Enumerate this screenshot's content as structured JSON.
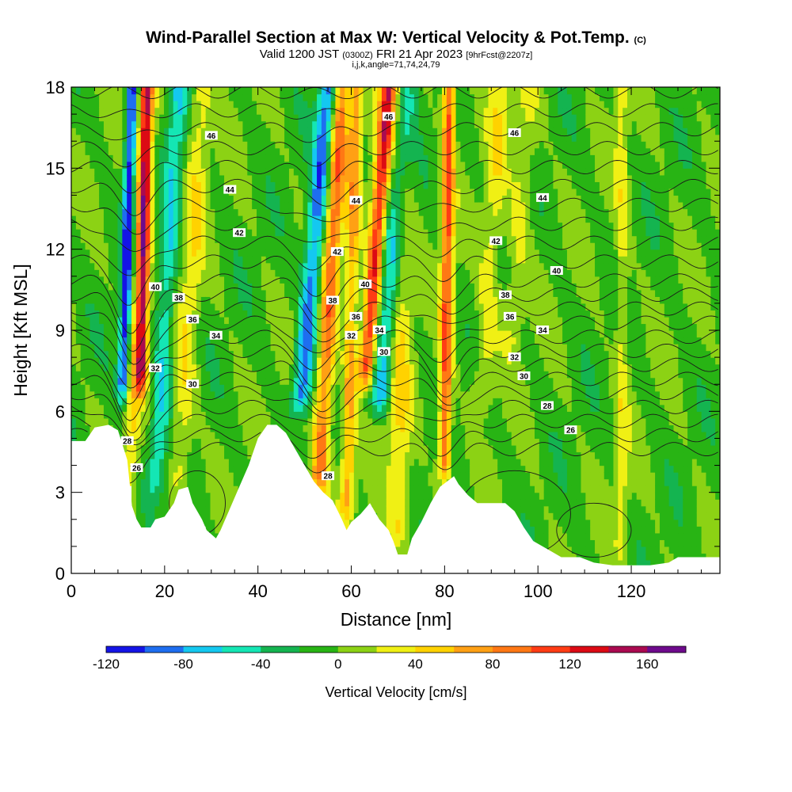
{
  "header": {
    "title": "Wind-Parallel Section at Max W: Vertical Velocity & Pot.Temp.",
    "title_mark": "(C)",
    "sub_valid": "Valid 1200 JST",
    "sub_utc": "(0300Z)",
    "sub_date": "FRI 21 Apr 2023",
    "sub_fcst": "[9hrFcst@2207z]",
    "sub3": "i,j,k,angle=71,74,24,79"
  },
  "colorbar": {
    "label": "Vertical Velocity [cm/s]",
    "min": -120,
    "max": 180,
    "step": 20,
    "tick_labels": [
      "-120",
      "-80",
      "-40",
      "0",
      "40",
      "80",
      "120",
      "160"
    ],
    "colors": [
      "#1414e6",
      "#1e6ef0",
      "#14c8f0",
      "#14e6b4",
      "#14b450",
      "#28b414",
      "#8cd214",
      "#f0f014",
      "#ffd200",
      "#ffa014",
      "#ff7814",
      "#ff3c14",
      "#dc0a14",
      "#aa0a50",
      "#6e0a8c"
    ]
  },
  "chart_data": {
    "type": "heatmap",
    "title": "Wind-Parallel Section at Max W: Vertical Velocity & Pot.Temp.",
    "xlabel": "Distance [nm]",
    "ylabel": "Height [Kft MSL]",
    "xlim": [
      0,
      139
    ],
    "ylim": [
      0,
      18
    ],
    "x_ticks": [
      0,
      20,
      40,
      60,
      80,
      100,
      120
    ],
    "y_ticks": [
      0,
      3,
      6,
      9,
      12,
      15,
      18
    ],
    "x_tick_labels": [
      "0",
      "20",
      "40",
      "60",
      "80",
      "100",
      "120"
    ],
    "y_tick_labels": [
      "0",
      "3",
      "6",
      "9",
      "12",
      "15",
      "18"
    ],
    "fill_variable": "Vertical Velocity [cm/s]",
    "contour_variable": "Pot.Temp.",
    "contour_labels": [
      {
        "text": "46",
        "x": 30,
        "y": 16.2
      },
      {
        "text": "46",
        "x": 68,
        "y": 16.9
      },
      {
        "text": "46",
        "x": 95,
        "y": 16.3
      },
      {
        "text": "44",
        "x": 34,
        "y": 14.2
      },
      {
        "text": "44",
        "x": 61,
        "y": 13.8
      },
      {
        "text": "44",
        "x": 101,
        "y": 13.9
      },
      {
        "text": "42",
        "x": 36,
        "y": 12.6
      },
      {
        "text": "42",
        "x": 57,
        "y": 11.9
      },
      {
        "text": "42",
        "x": 91,
        "y": 12.3
      },
      {
        "text": "40",
        "x": 18,
        "y": 10.6
      },
      {
        "text": "40",
        "x": 63,
        "y": 10.7
      },
      {
        "text": "40",
        "x": 104,
        "y": 11.2
      },
      {
        "text": "38",
        "x": 23,
        "y": 10.2
      },
      {
        "text": "38",
        "x": 56,
        "y": 10.1
      },
      {
        "text": "38",
        "x": 93,
        "y": 10.3
      },
      {
        "text": "36",
        "x": 26,
        "y": 9.4
      },
      {
        "text": "36",
        "x": 61,
        "y": 9.5
      },
      {
        "text": "36",
        "x": 94,
        "y": 9.5
      },
      {
        "text": "34",
        "x": 31,
        "y": 8.8
      },
      {
        "text": "34",
        "x": 66,
        "y": 9.0
      },
      {
        "text": "34",
        "x": 101,
        "y": 9.0
      },
      {
        "text": "32",
        "x": 18,
        "y": 7.6
      },
      {
        "text": "32",
        "x": 60,
        "y": 8.8
      },
      {
        "text": "32",
        "x": 95,
        "y": 8.0
      },
      {
        "text": "30",
        "x": 26,
        "y": 7.0
      },
      {
        "text": "30",
        "x": 67,
        "y": 8.2
      },
      {
        "text": "30",
        "x": 97,
        "y": 7.3
      },
      {
        "text": "28",
        "x": 12,
        "y": 4.9
      },
      {
        "text": "28",
        "x": 55,
        "y": 3.6
      },
      {
        "text": "28",
        "x": 102,
        "y": 6.2
      },
      {
        "text": "26",
        "x": 14,
        "y": 3.9
      },
      {
        "text": "26",
        "x": 107,
        "y": 5.3
      }
    ]
  }
}
